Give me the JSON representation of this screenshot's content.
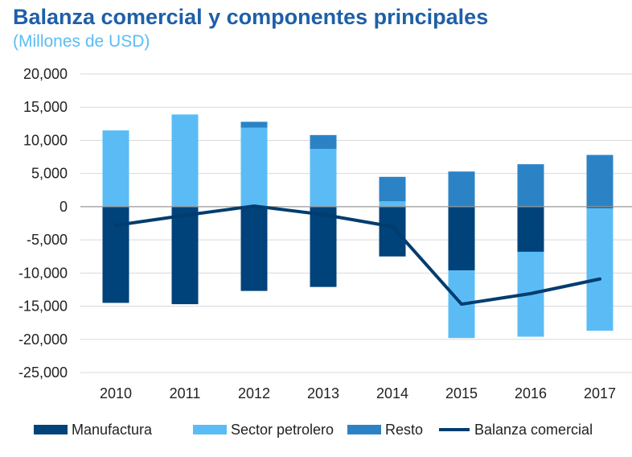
{
  "colors": {
    "manufactura": "#00427a",
    "petrolero": "#5bbcf5",
    "resto": "#2b83c6",
    "balanza": "#003c6e",
    "grid": "#d9d9d9",
    "axis": "#999999"
  },
  "chart_data": {
    "type": "bar",
    "title": "Balanza comercial y componentes principales",
    "subtitle": "(Millones de USD)",
    "categories": [
      "2010",
      "2011",
      "2012",
      "2013",
      "2014",
      "2015",
      "2016",
      "2017"
    ],
    "ylim": [
      -25000,
      20000
    ],
    "yticks": [
      20000,
      15000,
      10000,
      5000,
      0,
      -5000,
      -10000,
      -15000,
      -20000,
      -25000
    ],
    "ytick_labels": [
      "20,000",
      "15,000",
      "10,000",
      "5,000",
      "0",
      "-5,000",
      "-10,000",
      "-15,000",
      "-20,000",
      "-25,000"
    ],
    "grid": true,
    "legend_position": "bottom",
    "stacked": true,
    "series": [
      {
        "name": "Manufactura",
        "kind": "bar",
        "color_key": "manufactura",
        "values": [
          -14500,
          -14700,
          -12700,
          -12100,
          -7500,
          -9600,
          -6800,
          -200
        ]
      },
      {
        "name": "Sector petrolero",
        "kind": "bar",
        "color_key": "petrolero",
        "values": [
          11500,
          13900,
          11900,
          8700,
          800,
          -10200,
          -12800,
          -18500
        ]
      },
      {
        "name": "Resto",
        "kind": "bar",
        "color_key": "resto",
        "values": [
          0,
          0,
          900,
          2100,
          3700,
          5300,
          6400,
          7800
        ]
      },
      {
        "name": "Balanza comercial",
        "kind": "line",
        "color_key": "balanza",
        "values": [
          -2800,
          -1300,
          100,
          -1200,
          -3000,
          -14700,
          -13100,
          -10900
        ]
      }
    ]
  }
}
